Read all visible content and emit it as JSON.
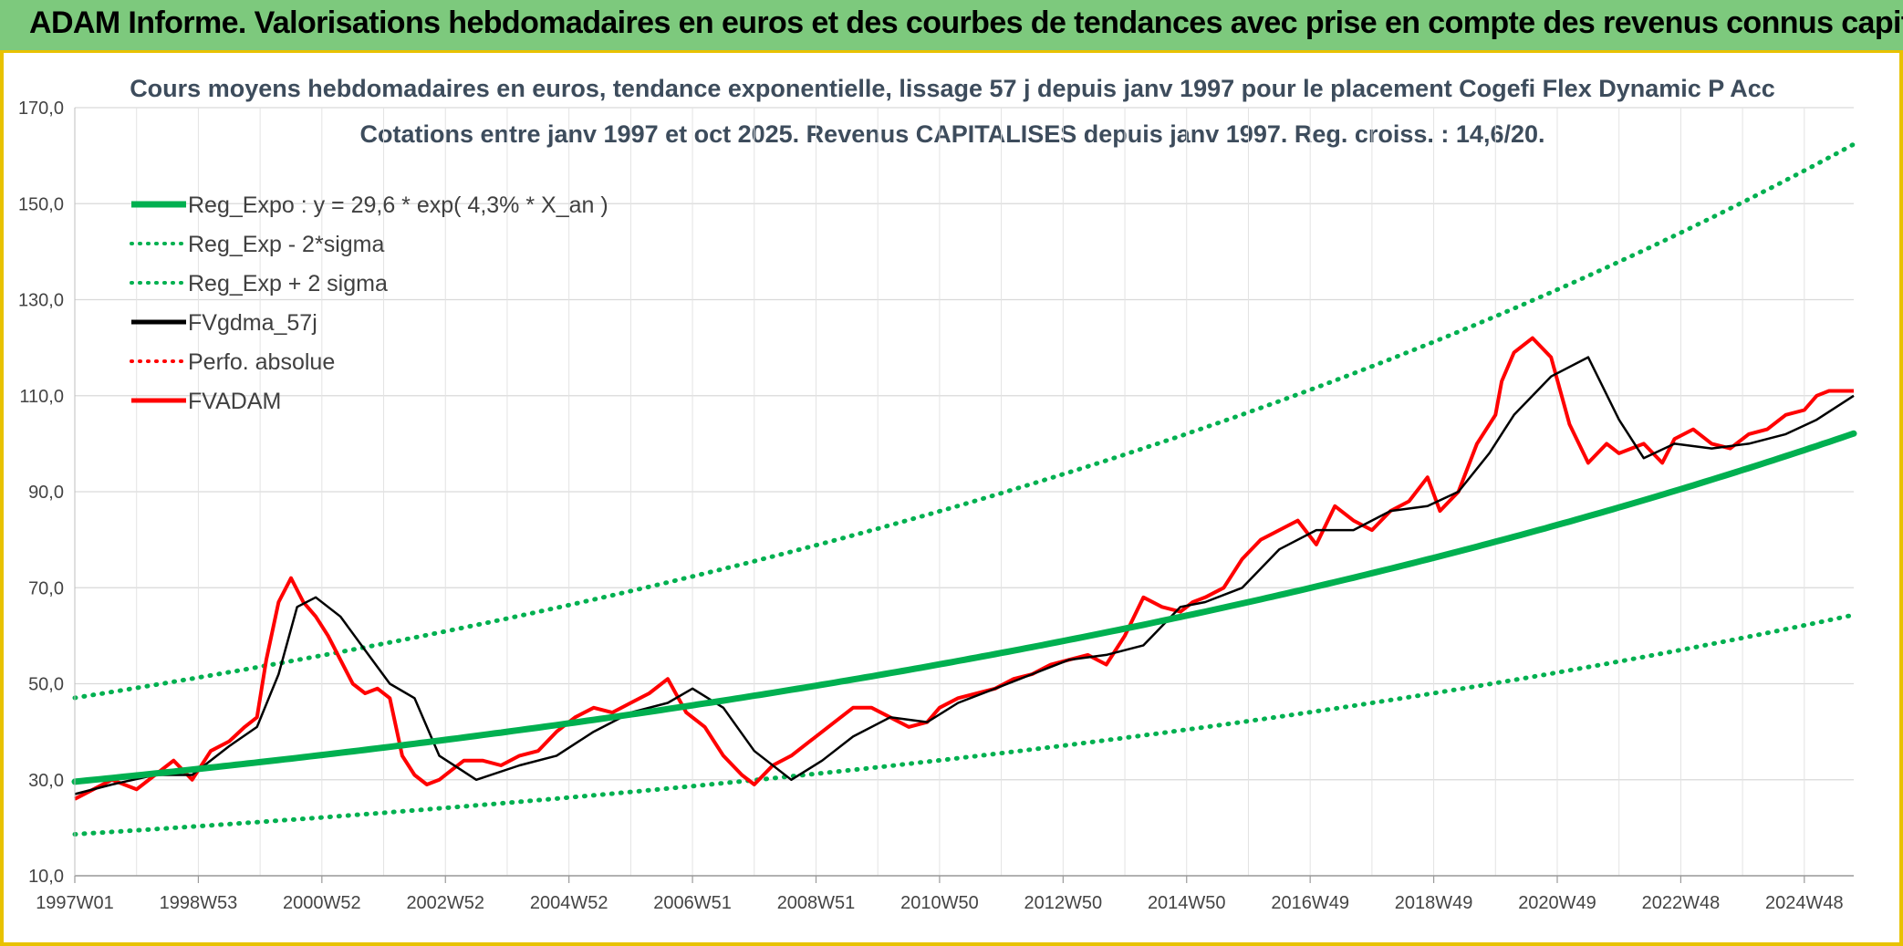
{
  "header": {
    "title": "ADAM Informe. Valorisations hebdomadaires en euros et des courbes de tendances avec prise en compte des revenus connus capitalisés"
  },
  "colors": {
    "banner": "#7dc97d",
    "border": "#e8c200",
    "trend": "#00b050",
    "bands": "#00b050",
    "smooth": "#000000",
    "perf": "#ff0000",
    "price": "#ff0000"
  },
  "chart_data": {
    "type": "line",
    "title": "Cours moyens hebdomadaires en euros, tendance exponentielle, lissage 57 j depuis janv 1997 pour le placement Cogefi Flex Dynamic P Acc",
    "subtitle": "Cotations entre janv 1997 et oct 2025. Revenus CAPITALISES depuis janv 1997. Reg. croiss. : 14,6/20.",
    "xlabel": "",
    "ylabel": "",
    "ylim": [
      10,
      170
    ],
    "yticks": [
      "10,0",
      "30,0",
      "50,0",
      "70,0",
      "90,0",
      "110,0",
      "130,0",
      "150,0",
      "170,0"
    ],
    "xlim": [
      1997.0,
      2025.8
    ],
    "xticks": [
      {
        "label": "1997W01",
        "x": 1997.0
      },
      {
        "label": "1998W53",
        "x": 1999.0
      },
      {
        "label": "2000W52",
        "x": 2001.0
      },
      {
        "label": "2002W52",
        "x": 2003.0
      },
      {
        "label": "2004W52",
        "x": 2005.0
      },
      {
        "label": "2006W51",
        "x": 2007.0
      },
      {
        "label": "2008W51",
        "x": 2009.0
      },
      {
        "label": "2010W50",
        "x": 2011.0
      },
      {
        "label": "2012W50",
        "x": 2013.0
      },
      {
        "label": "2014W50",
        "x": 2015.0
      },
      {
        "label": "2016W49",
        "x": 2017.0
      },
      {
        "label": "2018W49",
        "x": 2019.0
      },
      {
        "label": "2020W49",
        "x": 2021.0
      },
      {
        "label": "2022W48",
        "x": 2023.0
      },
      {
        "label": "2024W48",
        "x": 2025.0
      }
    ],
    "grid": true,
    "legend_position": "top-left",
    "legend": [
      {
        "name": "Reg_Expo : y = 29,6 * exp( 4,3% *  X_an )",
        "style": "solid-thick",
        "color": "#00b050"
      },
      {
        "name": "Reg_Exp - 2*sigma",
        "style": "dotted",
        "color": "#00b050"
      },
      {
        "name": "Reg_Exp + 2 sigma",
        "style": "dotted",
        "color": "#00b050"
      },
      {
        "name": "FVgdma_57j",
        "style": "solid",
        "color": "#000000"
      },
      {
        "name": "Perfo. absolue",
        "style": "dotted",
        "color": "#ff0000"
      },
      {
        "name": "FVADAM",
        "style": "solid",
        "color": "#ff0000"
      }
    ],
    "regression": {
      "a": 29.6,
      "rate": 0.043,
      "lower_factor": 0.63,
      "upper_factor": 1.59
    },
    "series": [
      {
        "name": "FVADAM",
        "x": [
          1997.0,
          1997.3,
          1997.6,
          1998.0,
          1998.3,
          1998.6,
          1998.9,
          1999.2,
          1999.5,
          1999.75,
          1999.95,
          2000.1,
          2000.3,
          2000.5,
          2000.7,
          2000.9,
          2001.1,
          2001.3,
          2001.5,
          2001.7,
          2001.9,
          2002.1,
          2002.3,
          2002.5,
          2002.7,
          2002.9,
          2003.1,
          2003.3,
          2003.6,
          2003.9,
          2004.2,
          2004.5,
          2004.8,
          2005.1,
          2005.4,
          2005.7,
          2006.0,
          2006.3,
          2006.6,
          2006.9,
          2007.2,
          2007.5,
          2007.8,
          2008.0,
          2008.3,
          2008.6,
          2008.9,
          2009.1,
          2009.3,
          2009.6,
          2009.9,
          2010.2,
          2010.5,
          2010.8,
          2011.0,
          2011.3,
          2011.6,
          2011.9,
          2012.2,
          2012.5,
          2012.8,
          2013.1,
          2013.4,
          2013.7,
          2014.0,
          2014.3,
          2014.6,
          2014.9,
          2015.1,
          2015.3,
          2015.6,
          2015.9,
          2016.2,
          2016.5,
          2016.8,
          2017.1,
          2017.4,
          2017.7,
          2018.0,
          2018.3,
          2018.6,
          2018.9,
          2019.1,
          2019.4,
          2019.7,
          2020.0,
          2020.1,
          2020.3,
          2020.6,
          2020.9,
          2021.2,
          2021.5,
          2021.8,
          2022.0,
          2022.2,
          2022.4,
          2022.7,
          2022.9,
          2023.2,
          2023.5,
          2023.8,
          2024.1,
          2024.4,
          2024.7,
          2025.0,
          2025.2,
          2025.4,
          2025.8
        ],
        "values": [
          26,
          28,
          30,
          28,
          31,
          34,
          30,
          36,
          38,
          41,
          43,
          55,
          67,
          72,
          67,
          64,
          60,
          55,
          50,
          48,
          49,
          47,
          35,
          31,
          29,
          30,
          32,
          34,
          34,
          33,
          35,
          36,
          40,
          43,
          45,
          44,
          46,
          48,
          51,
          44,
          41,
          35,
          31,
          29,
          33,
          35,
          38,
          40,
          42,
          45,
          45,
          43,
          41,
          42,
          45,
          47,
          48,
          49,
          51,
          52,
          54,
          55,
          56,
          54,
          60,
          68,
          66,
          65,
          67,
          68,
          70,
          76,
          80,
          82,
          84,
          79,
          87,
          84,
          82,
          86,
          88,
          93,
          86,
          90,
          100,
          106,
          113,
          119,
          122,
          118,
          104,
          96,
          100,
          98,
          99,
          100,
          96,
          101,
          103,
          100,
          99,
          102,
          103,
          106,
          107,
          110,
          111,
          111
        ]
      },
      {
        "name": "FVgdma_57j",
        "x": [
          1997.0,
          1997.6,
          1998.3,
          1998.9,
          1999.5,
          1999.95,
          2000.3,
          2000.6,
          2000.9,
          2001.3,
          2001.7,
          2002.1,
          2002.5,
          2002.9,
          2003.5,
          2004.2,
          2004.8,
          2005.4,
          2006.0,
          2006.6,
          2007.0,
          2007.5,
          2008.0,
          2008.6,
          2009.1,
          2009.6,
          2010.2,
          2010.8,
          2011.3,
          2011.9,
          2012.5,
          2013.1,
          2013.7,
          2014.3,
          2014.9,
          2015.3,
          2015.9,
          2016.5,
          2017.1,
          2017.7,
          2018.3,
          2018.9,
          2019.4,
          2019.9,
          2020.3,
          2020.9,
          2021.5,
          2022.0,
          2022.4,
          2022.9,
          2023.5,
          2024.1,
          2024.7,
          2025.2,
          2025.8
        ],
        "values": [
          27,
          29,
          31,
          31,
          37,
          41,
          52,
          66,
          68,
          64,
          57,
          50,
          47,
          35,
          30,
          33,
          35,
          40,
          44,
          46,
          49,
          45,
          36,
          30,
          34,
          39,
          43,
          42,
          46,
          49,
          52,
          55,
          56,
          58,
          66,
          67,
          70,
          78,
          82,
          82,
          86,
          87,
          90,
          98,
          106,
          114,
          118,
          105,
          97,
          100,
          99,
          100,
          102,
          105,
          110
        ]
      }
    ]
  }
}
